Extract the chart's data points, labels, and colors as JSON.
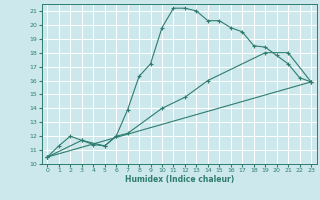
{
  "xlabel": "Humidex (Indice chaleur)",
  "bg_color": "#cce8ec",
  "grid_color": "#ffffff",
  "line_color": "#2e7d6e",
  "xlim": [
    -0.5,
    23.5
  ],
  "ylim": [
    10,
    21.5
  ],
  "xticks": [
    0,
    1,
    2,
    3,
    4,
    5,
    6,
    7,
    8,
    9,
    10,
    11,
    12,
    13,
    14,
    15,
    16,
    17,
    18,
    19,
    20,
    21,
    22,
    23
  ],
  "yticks": [
    10,
    11,
    12,
    13,
    14,
    15,
    16,
    17,
    18,
    19,
    20,
    21
  ],
  "line1_x": [
    0,
    1,
    2,
    3,
    4,
    5,
    6,
    7,
    8,
    9,
    10,
    11,
    12,
    13,
    14,
    15,
    16,
    17,
    18,
    19,
    20,
    21,
    22,
    23
  ],
  "line1_y": [
    10.5,
    11.3,
    12.0,
    11.7,
    11.4,
    11.3,
    12.0,
    13.9,
    16.3,
    17.2,
    19.8,
    21.2,
    21.2,
    21.0,
    20.3,
    20.3,
    19.8,
    19.5,
    18.5,
    18.4,
    17.8,
    17.2,
    16.2,
    15.9
  ],
  "line2_x": [
    0,
    3,
    5,
    6,
    7,
    10,
    12,
    14,
    19,
    21,
    23
  ],
  "line2_y": [
    10.5,
    11.7,
    11.3,
    12.0,
    12.2,
    14.0,
    14.8,
    16.0,
    18.0,
    18.0,
    15.9
  ],
  "line3_x": [
    0,
    23
  ],
  "line3_y": [
    10.5,
    15.9
  ]
}
